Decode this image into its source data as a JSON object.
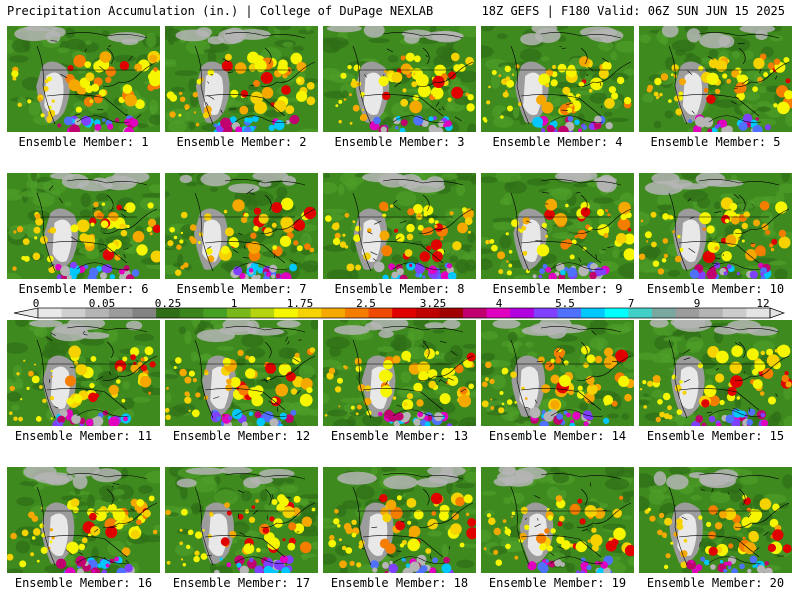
{
  "header": {
    "title": "Precipitation Accumulation (in.) | College of DuPage NEXLAB",
    "run_info": "18Z GEFS | F180 Valid: 06Z SUN JUN 15 2025"
  },
  "members": [
    {
      "label": "Ensemble Member: 1"
    },
    {
      "label": "Ensemble Member: 2"
    },
    {
      "label": "Ensemble Member: 3"
    },
    {
      "label": "Ensemble Member: 4"
    },
    {
      "label": "Ensemble Member: 5"
    },
    {
      "label": "Ensemble Member: 6"
    },
    {
      "label": "Ensemble Member: 7"
    },
    {
      "label": "Ensemble Member: 8"
    },
    {
      "label": "Ensemble Member: 9"
    },
    {
      "label": "Ensemble Member: 10"
    },
    {
      "label": "Ensemble Member: 11"
    },
    {
      "label": "Ensemble Member: 12"
    },
    {
      "label": "Ensemble Member: 13"
    },
    {
      "label": "Ensemble Member: 14"
    },
    {
      "label": "Ensemble Member: 15"
    },
    {
      "label": "Ensemble Member: 16"
    },
    {
      "label": "Ensemble Member: 17"
    },
    {
      "label": "Ensemble Member: 18"
    },
    {
      "label": "Ensemble Member: 19"
    },
    {
      "label": "Ensemble Member: 20"
    }
  ],
  "colorbar": {
    "ticks": [
      "0",
      "0.05",
      "0.25",
      "1",
      "1.75",
      "2.5",
      "3.25",
      "4",
      "5.5",
      "7",
      "9",
      "12"
    ],
    "colors": [
      "#e8e8e8",
      "#cfcfcf",
      "#b5b5b5",
      "#9c9c9c",
      "#838383",
      "#2f6e17",
      "#3a861c",
      "#46a024",
      "#78b81a",
      "#b5d40f",
      "#f6f600",
      "#f5d200",
      "#f5a800",
      "#f57d00",
      "#ee4a00",
      "#e00000",
      "#bf0000",
      "#a00000",
      "#c0006e",
      "#e000c0",
      "#b000e0",
      "#8040ff",
      "#4e72ff",
      "#00c8ff",
      "#00ffff",
      "#40d0c8",
      "#7aa8a0",
      "#9c9c9c",
      "#b4b4b4",
      "#cccccc",
      "#e4e4e4"
    ]
  }
}
